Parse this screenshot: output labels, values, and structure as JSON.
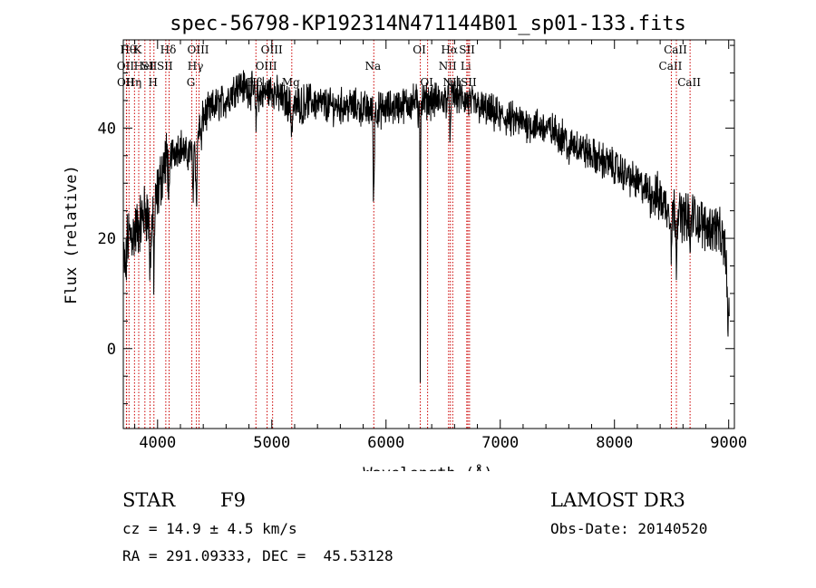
{
  "chart_data": {
    "type": "line",
    "title": "spec-56798-KP192314N471144B01_sp01-133.fits",
    "xlabel": "Wavelength (Å)",
    "ylabel": "Flux (relative)",
    "xlim": [
      3700,
      9050
    ],
    "ylim": [
      -14.5,
      56
    ],
    "xticks": [
      {
        "value": 4000,
        "label": "4000"
      },
      {
        "value": 5000,
        "label": "5000"
      },
      {
        "value": 6000,
        "label": "6000"
      },
      {
        "value": 7000,
        "label": "7000"
      },
      {
        "value": 8000,
        "label": "8000"
      },
      {
        "value": 9000,
        "label": "9000"
      }
    ],
    "yticks": [
      {
        "value": 0,
        "label": "0"
      },
      {
        "value": 20,
        "label": "20"
      },
      {
        "value": 40,
        "label": "40"
      }
    ],
    "x_minor_step": 200,
    "y_minor_step": 5,
    "continuum": [
      [
        3700,
        20
      ],
      [
        3800,
        21
      ],
      [
        3850,
        23
      ],
      [
        3900,
        25
      ],
      [
        3950,
        22
      ],
      [
        4000,
        28
      ],
      [
        4050,
        33
      ],
      [
        4100,
        35
      ],
      [
        4150,
        36
      ],
      [
        4200,
        37
      ],
      [
        4250,
        35
      ],
      [
        4300,
        36
      ],
      [
        4400,
        42
      ],
      [
        4500,
        44
      ],
      [
        4600,
        45
      ],
      [
        4700,
        48
      ],
      [
        4800,
        47
      ],
      [
        4900,
        46
      ],
      [
        5000,
        47
      ],
      [
        5100,
        45
      ],
      [
        5200,
        44
      ],
      [
        5300,
        45
      ],
      [
        5500,
        44
      ],
      [
        5700,
        44
      ],
      [
        5900,
        43
      ],
      [
        6100,
        44
      ],
      [
        6300,
        45
      ],
      [
        6500,
        45
      ],
      [
        6600,
        46
      ],
      [
        6800,
        44
      ],
      [
        7000,
        42
      ],
      [
        7200,
        41
      ],
      [
        7400,
        40
      ],
      [
        7600,
        38
      ],
      [
        7800,
        35
      ],
      [
        8000,
        33
      ],
      [
        8200,
        30
      ],
      [
        8400,
        27
      ],
      [
        8500,
        25
      ],
      [
        8600,
        24
      ],
      [
        8700,
        24
      ],
      [
        8800,
        22
      ],
      [
        8900,
        22
      ],
      [
        9000,
        16
      ]
    ],
    "absorption_features": [
      [
        3705,
        9,
        3
      ],
      [
        3720,
        12,
        6
      ],
      [
        3934,
        6,
        10
      ],
      [
        3968,
        6,
        10
      ],
      [
        4101,
        7,
        9
      ],
      [
        4310,
        7,
        8
      ],
      [
        4340,
        8,
        12
      ],
      [
        4383,
        5,
        5
      ],
      [
        4861,
        6,
        6
      ],
      [
        5175,
        10,
        4
      ],
      [
        5270,
        5,
        3
      ],
      [
        5890,
        4,
        14
      ],
      [
        5896,
        4,
        10
      ],
      [
        6280,
        4,
        4
      ],
      [
        6300,
        3,
        54
      ],
      [
        6563,
        5,
        8
      ],
      [
        7600,
        12,
        4
      ],
      [
        8498,
        5,
        8
      ],
      [
        8542,
        5,
        9
      ],
      [
        8662,
        5,
        8
      ],
      [
        8995,
        12,
        12
      ]
    ],
    "lines": [
      {
        "wl": 3750,
        "label": "Hθ",
        "row": 0
      },
      {
        "wl": 3727,
        "label": "OII",
        "row": 1
      },
      {
        "wl": 3729,
        "label": "OII",
        "row": 2
      },
      {
        "wl": 3798,
        "label": "Hη",
        "row": 2
      },
      {
        "wl": 3835,
        "label": "K",
        "row": 0
      },
      {
        "wl": 3889,
        "label": "HeI",
        "row": 1
      },
      {
        "wl": 3934,
        "label": "SII",
        "row": 1
      },
      {
        "wl": 3968,
        "label": "H",
        "row": 2
      },
      {
        "wl": 4101,
        "label": "Hδ",
        "row": 0
      },
      {
        "wl": 4072,
        "label": "SII",
        "row": 1
      },
      {
        "wl": 4300,
        "label": "G",
        "row": 2
      },
      {
        "wl": 4340,
        "label": "Hγ",
        "row": 1
      },
      {
        "wl": 4363,
        "label": "OIII",
        "row": 0
      },
      {
        "wl": 4861,
        "label": "Hβ",
        "row": 2
      },
      {
        "wl": 4959,
        "label": "OIII",
        "row": 1
      },
      {
        "wl": 5007,
        "label": "OIII",
        "row": 0
      },
      {
        "wl": 5175,
        "label": "Mg",
        "row": 2
      },
      {
        "wl": 5893,
        "label": "Na",
        "row": 1
      },
      {
        "wl": 6300,
        "label": "OI",
        "row": 0
      },
      {
        "wl": 6364,
        "label": "OI",
        "row": 2
      },
      {
        "wl": 6548,
        "label": "NII",
        "row": 1
      },
      {
        "wl": 6563,
        "label": "Hα",
        "row": 0
      },
      {
        "wl": 6584,
        "label": "NII",
        "row": 2
      },
      {
        "wl": 6707,
        "label": "Li",
        "row": 1
      },
      {
        "wl": 6717,
        "label": "SII",
        "row": 0
      },
      {
        "wl": 6731,
        "label": "SII",
        "row": 2
      },
      {
        "wl": 8498,
        "label": "CaII",
        "row": 1
      },
      {
        "wl": 8542,
        "label": "CaII",
        "row": 0
      },
      {
        "wl": 8662,
        "label": "CaII",
        "row": 2
      }
    ],
    "colors": {
      "spectrum": "#000000",
      "lines": "#cc0000",
      "axes": "#000000"
    }
  },
  "info": {
    "object_class": "STAR",
    "subclass": "F9",
    "survey": "LAMOST DR3",
    "redshift": "cz = 14.9 ± 4.5 km/s",
    "obs_date": "Obs-Date: 20140520",
    "coords": "RA = 291.09333, DEC =  45.53128"
  }
}
